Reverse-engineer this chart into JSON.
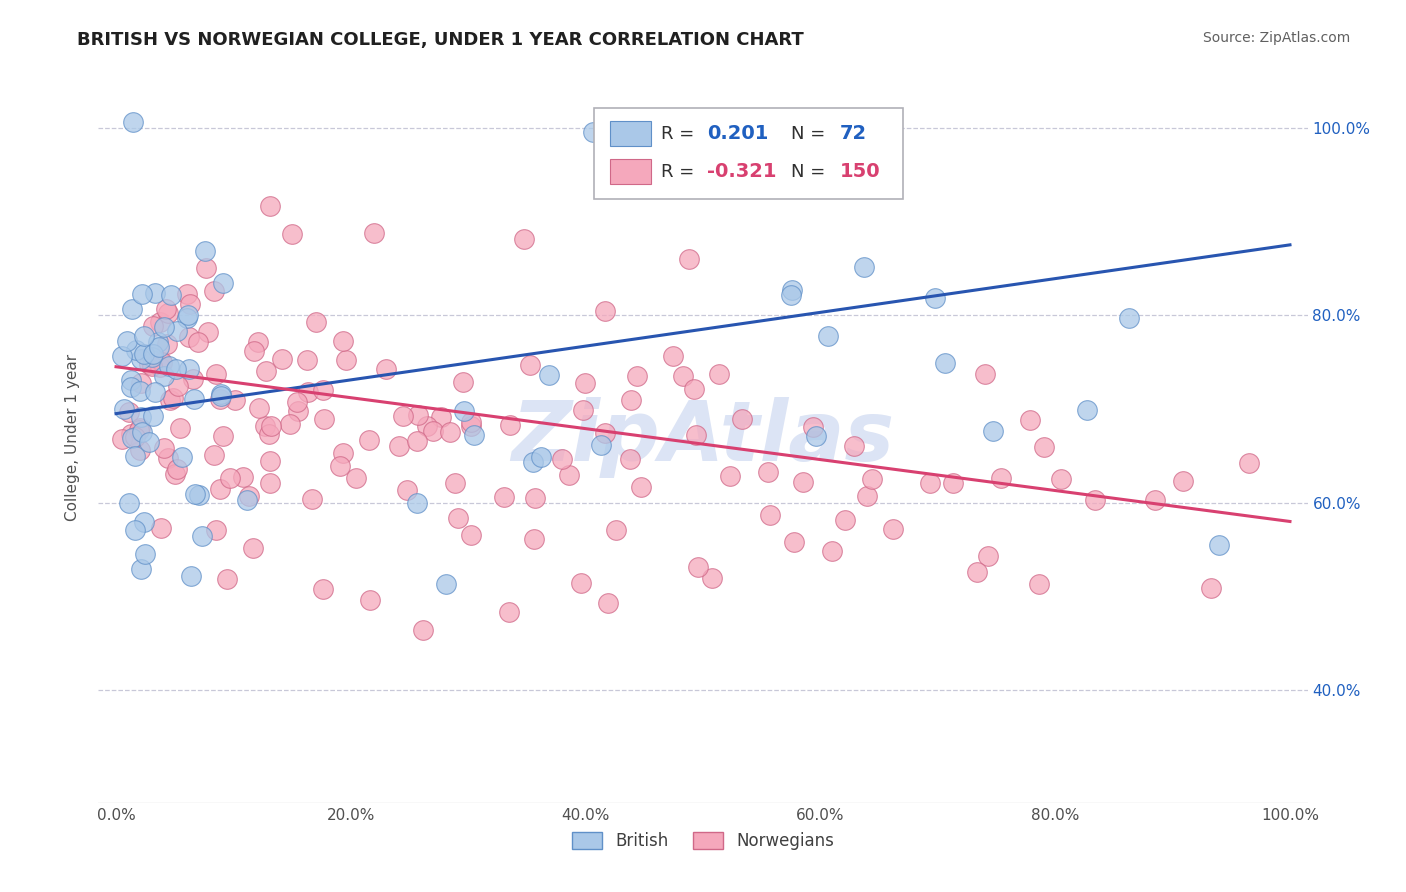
{
  "title": "BRITISH VS NORWEGIAN COLLEGE, UNDER 1 YEAR CORRELATION CHART",
  "source": "Source: ZipAtlas.com",
  "ylabel": "College, Under 1 year",
  "british_R": 0.201,
  "british_N": 72,
  "norwegian_R": -0.321,
  "norwegian_N": 150,
  "british_color": "#aac8e8",
  "norwegian_color": "#f5a8bc",
  "british_line_color": "#2855b0",
  "norwegian_line_color": "#d84070",
  "background_color": "#ffffff",
  "grid_color": "#c8c8d8",
  "title_color": "#202020",
  "watermark_color": "#dce4f5",
  "brit_line_y0": 0.695,
  "brit_line_y1": 0.875,
  "nor_line_y0": 0.745,
  "nor_line_y1": 0.58,
  "yticks": [
    0.4,
    0.6,
    0.8,
    1.0
  ],
  "xticks": [
    0.0,
    0.2,
    0.4,
    0.6,
    0.8,
    1.0
  ],
  "ylim_low": 0.28,
  "ylim_high": 1.06
}
